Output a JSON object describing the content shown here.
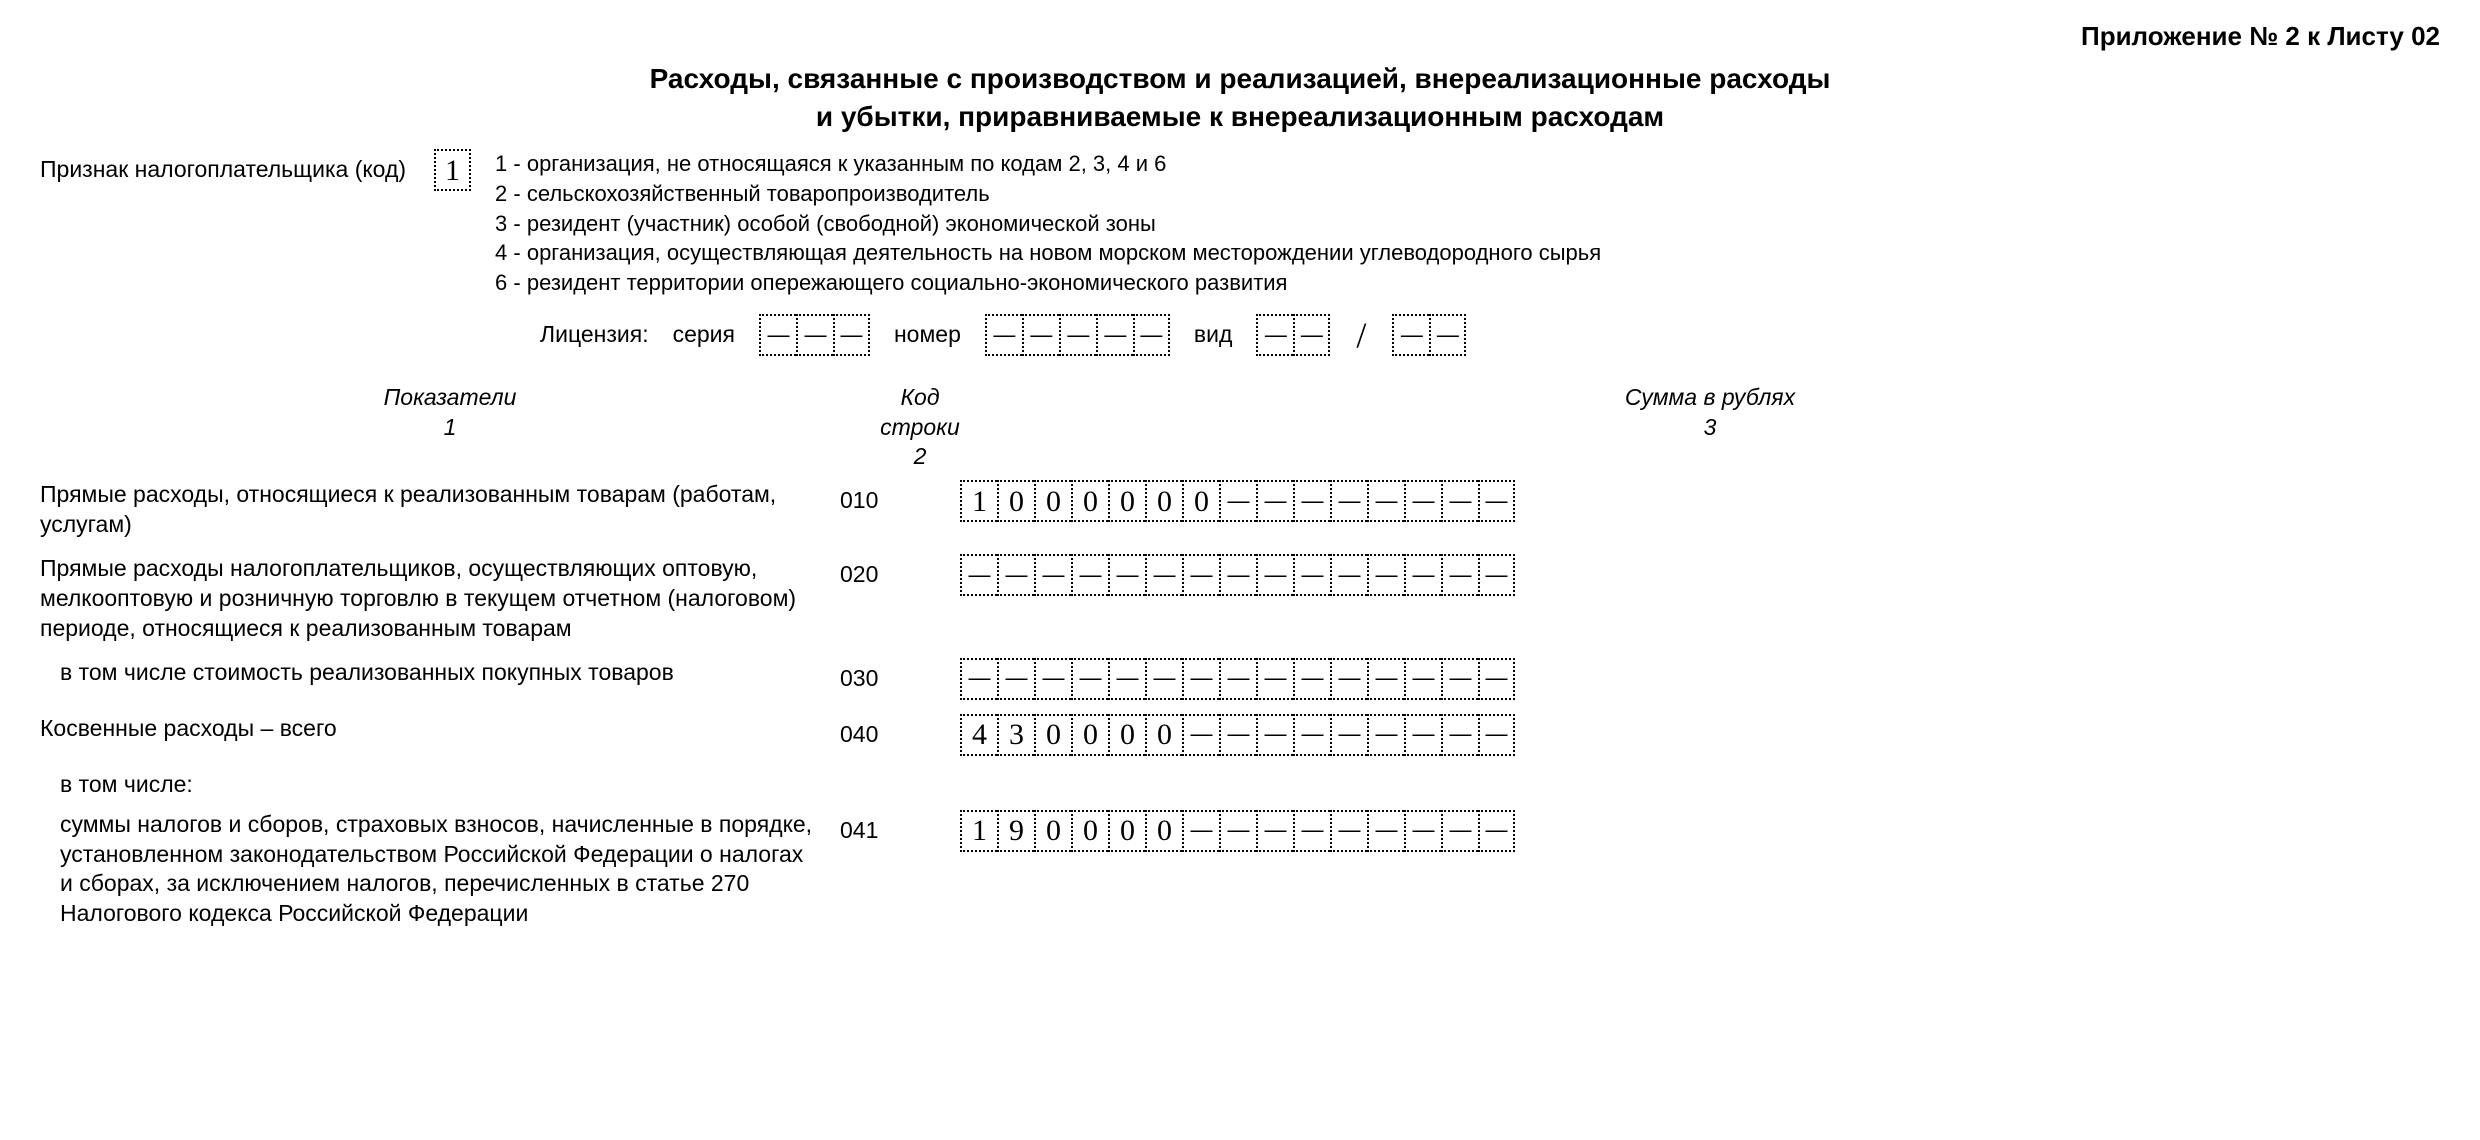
{
  "header": {
    "appendix": "Приложение № 2 к Листу 02",
    "title_line1": "Расходы, связанные с производством и реализацией, внереализационные расходы",
    "title_line2": "и убытки, приравниваемые к внереализационным расходам"
  },
  "taxpayer": {
    "label": "Признак налогоплательщика (код)",
    "code_digit": "1",
    "legend": {
      "l1": "1 - организация, не относящаяся к указанным по кодам 2, 3, 4 и 6",
      "l2": "2 - сельскохозяйственный товаропроизводитель",
      "l3": "3 - резидент (участник) особой (свободной) экономической зоны",
      "l4": "4 - организация, осуществляющая деятельность на новом морском месторождении углеводородного сырья",
      "l6": "6 - резидент территории опережающего социально-экономического развития"
    }
  },
  "license": {
    "prefix": "Лицензия:",
    "series_label": "серия",
    "series_cells": 3,
    "number_label": "номер",
    "number_cells": 5,
    "type_label": "вид",
    "type_cells_a": 2,
    "type_cells_b": 2
  },
  "columns": {
    "c1": "Показатели",
    "c1n": "1",
    "c2": "Код строки",
    "c2n": "2",
    "c3": "Сумма в рублях",
    "c3n": "3"
  },
  "rows": [
    {
      "desc": "Прямые расходы, относящиеся к реализованным товарам (работам, услугам)",
      "code": "010",
      "amount_digits": [
        "1",
        "0",
        "0",
        "0",
        "0",
        "0",
        "0"
      ],
      "total_cells": 15,
      "indent": false
    },
    {
      "desc": "Прямые расходы налогоплательщиков, осуществляющих оптовую, мелкооптовую и розничную торговлю в текущем отчетном (налоговом) периоде, относящиеся к реализованным товарам",
      "code": "020",
      "amount_digits": [],
      "total_cells": 15,
      "indent": false
    },
    {
      "desc": "в том числе стоимость реализованных покупных товаров",
      "code": "030",
      "amount_digits": [],
      "total_cells": 15,
      "indent": true
    },
    {
      "desc": "Косвенные расходы – всего",
      "code": "040",
      "amount_digits": [
        "4",
        "3",
        "0",
        "0",
        "0",
        "0"
      ],
      "total_cells": 15,
      "indent": false
    }
  ],
  "subheader": "в том числе:",
  "row041": {
    "desc": "суммы налогов и сборов, страховых взносов, начисленные в порядке, установленном законодательством Российской Федерации о налогах и сборах, за исключением налогов, перечисленных в статье 270 Налогового кодекса Российской Федерации",
    "code": "041",
    "amount_digits": [
      "1",
      "9",
      "0",
      "0",
      "0",
      "0"
    ],
    "total_cells": 15
  }
}
